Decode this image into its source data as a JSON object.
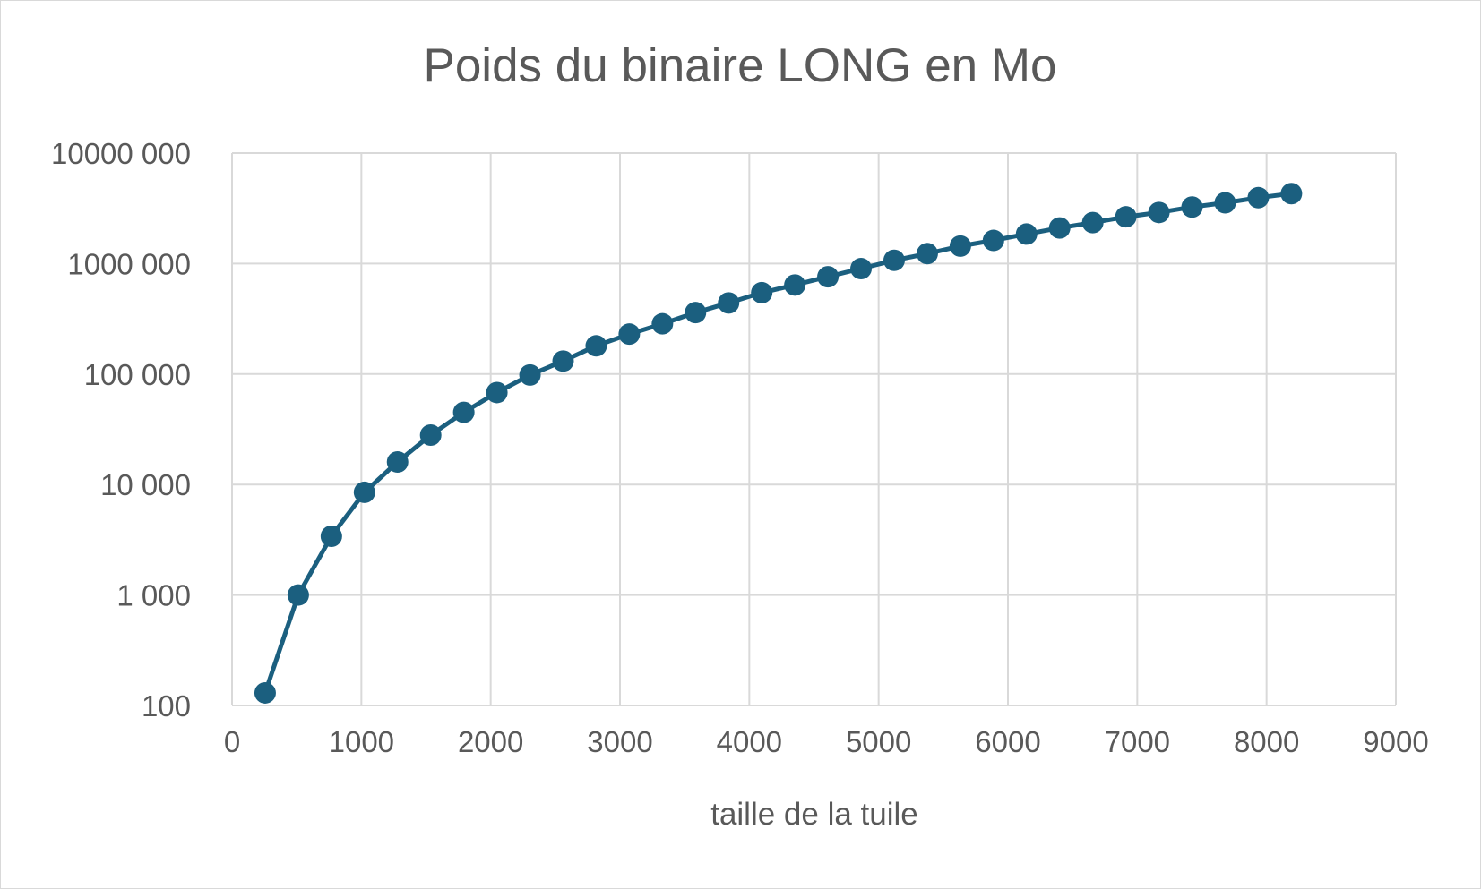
{
  "chart_data": {
    "type": "line",
    "title": "Poids du binaire  LONG en Mo",
    "xlabel": "taille de la tuile",
    "ylabel": "",
    "xlim": [
      0,
      9000
    ],
    "ylim": [
      100,
      10000000
    ],
    "y_scale": "log",
    "grid": true,
    "legend": "none",
    "x_ticks": [
      0,
      1000,
      2000,
      3000,
      4000,
      5000,
      6000,
      7000,
      8000,
      9000
    ],
    "x_tick_labels": [
      "0",
      "1000",
      "2000",
      "3000",
      "4000",
      "5000",
      "6000",
      "7000",
      "8000",
      "9000"
    ],
    "y_ticks": [
      100,
      1000,
      10000,
      100000,
      1000000,
      10000000
    ],
    "y_tick_labels": [
      "100",
      "1 000",
      "10 000",
      "100 000",
      "1000 000",
      "10000 000"
    ],
    "series": [
      {
        "color": "#1b5f7f",
        "x": [
          256,
          512,
          768,
          1024,
          1280,
          1536,
          1792,
          2048,
          2304,
          2560,
          2816,
          3072,
          3328,
          3584,
          3840,
          4096,
          4352,
          4608,
          4864,
          5120,
          5376,
          5632,
          5888,
          6144,
          6400,
          6656,
          6912,
          7168,
          7424,
          7680,
          7936,
          8192
        ],
        "y": [
          130,
          1000,
          3400,
          8500,
          16000,
          28000,
          45000,
          68000,
          98000,
          131000,
          180000,
          230000,
          285000,
          360000,
          440000,
          545000,
          640000,
          760000,
          900000,
          1070000,
          1230000,
          1440000,
          1620000,
          1850000,
          2100000,
          2350000,
          2650000,
          2900000,
          3250000,
          3550000,
          3950000,
          4300000
        ]
      }
    ]
  }
}
